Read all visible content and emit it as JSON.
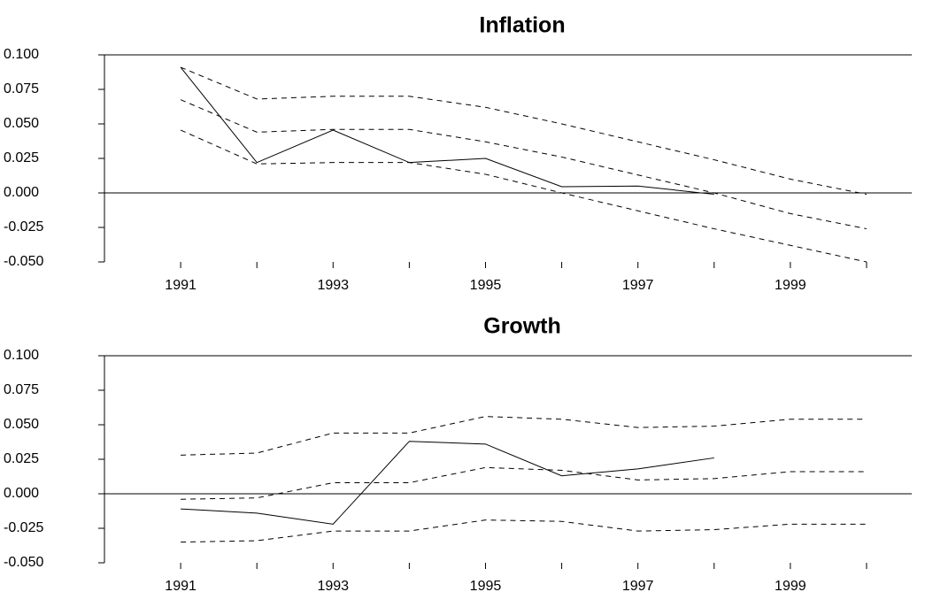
{
  "chart_data": [
    {
      "type": "line",
      "title": "Inflation",
      "x": [
        1991,
        1992,
        1993,
        1994,
        1995,
        1996,
        1997,
        1998,
        1999,
        2000
      ],
      "series": [
        {
          "color": "#000000",
          "style": "solid",
          "values": [
            0.091,
            0.022,
            0.0455,
            0.022,
            0.025,
            0.0045,
            0.005,
            -0.001,
            null,
            null
          ]
        },
        {
          "color": "#000000",
          "style": "dashed",
          "values": [
            0.091,
            0.068,
            0.07,
            0.07,
            0.062,
            0.05,
            0.037,
            0.024,
            0.01,
            -0.001
          ]
        },
        {
          "color": "#000000",
          "style": "dashed",
          "values": [
            0.0675,
            0.044,
            0.046,
            0.046,
            0.037,
            0.026,
            0.013,
            0.0,
            -0.015,
            -0.026
          ]
        },
        {
          "color": "#000000",
          "style": "dashed",
          "values": [
            0.0455,
            0.021,
            0.022,
            0.022,
            0.0135,
            0.0,
            -0.013,
            -0.026,
            -0.038,
            -0.05
          ]
        }
      ],
      "xlim": [
        1990,
        2000.5
      ],
      "ylim": [
        -0.05,
        0.1
      ],
      "xticks": [
        1991,
        1993,
        1995,
        1997,
        1999
      ],
      "xminor": [
        1992,
        1994,
        1996,
        1998,
        2000
      ],
      "yticks": [
        {
          "value": -0.05,
          "label": "-0.050"
        },
        {
          "value": -0.025,
          "label": "-0.025"
        },
        {
          "value": 0,
          "label": "0.000"
        },
        {
          "value": 0.025,
          "label": "0.025"
        },
        {
          "value": 0.05,
          "label": "0.050"
        },
        {
          "value": 0.075,
          "label": "0.075"
        },
        {
          "value": 0.1,
          "label": "0.100"
        }
      ],
      "zero_line": true
    },
    {
      "type": "line",
      "title": "Growth",
      "x": [
        1991,
        1992,
        1993,
        1994,
        1995,
        1996,
        1997,
        1998,
        1999,
        2000
      ],
      "series": [
        {
          "color": "#000000",
          "style": "solid",
          "values": [
            -0.011,
            -0.014,
            -0.022,
            0.038,
            0.036,
            0.013,
            0.018,
            0.026,
            null,
            null
          ]
        },
        {
          "color": "#000000",
          "style": "dashed",
          "values": [
            0.028,
            0.0295,
            0.044,
            0.044,
            0.056,
            0.054,
            0.048,
            0.049,
            0.054,
            0.054
          ]
        },
        {
          "color": "#000000",
          "style": "dashed",
          "values": [
            -0.004,
            -0.003,
            0.008,
            0.008,
            0.019,
            0.017,
            0.01,
            0.011,
            0.016,
            0.016
          ]
        },
        {
          "color": "#000000",
          "style": "dashed",
          "values": [
            -0.035,
            -0.034,
            -0.027,
            -0.027,
            -0.019,
            -0.02,
            -0.027,
            -0.026,
            -0.022,
            -0.022
          ]
        }
      ],
      "xlim": [
        1990,
        2000.5
      ],
      "ylim": [
        -0.05,
        0.1
      ],
      "xticks": [
        1991,
        1993,
        1995,
        1997,
        1999
      ],
      "xminor": [
        1992,
        1994,
        1996,
        1998,
        2000
      ],
      "yticks": [
        {
          "value": -0.05,
          "label": "-0.050"
        },
        {
          "value": -0.025,
          "label": "-0.025"
        },
        {
          "value": 0,
          "label": "0.000"
        },
        {
          "value": 0.025,
          "label": "0.025"
        },
        {
          "value": 0.05,
          "label": "0.050"
        },
        {
          "value": 0.075,
          "label": "0.075"
        },
        {
          "value": 0.1,
          "label": "0.100"
        }
      ],
      "zero_line": true
    }
  ]
}
